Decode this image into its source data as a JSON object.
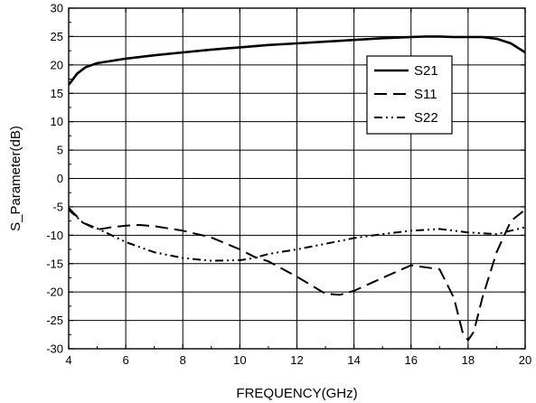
{
  "chart_data": {
    "type": "line",
    "title": "",
    "xlabel": "FREQUENCY(GHz)",
    "ylabel": "S_Parameter(dB)",
    "xlim": [
      4,
      20
    ],
    "ylim": [
      -30,
      30
    ],
    "xticks": [
      4,
      6,
      8,
      10,
      12,
      14,
      16,
      18,
      20
    ],
    "yticks": [
      -30,
      -25,
      -20,
      -15,
      -10,
      -5,
      0,
      5,
      10,
      15,
      20,
      25,
      30
    ],
    "grid": true,
    "legend_position": "right",
    "series": [
      {
        "name": "S21",
        "style": "solid",
        "color": "#000000",
        "x": [
          4,
          4.3,
          4.6,
          5,
          5.5,
          6,
          7,
          8,
          9,
          10,
          11,
          12,
          13,
          14,
          15,
          16,
          16.5,
          17,
          17.5,
          18,
          18.5,
          19,
          19.5,
          20
        ],
        "y": [
          16.5,
          18.5,
          19.6,
          20.3,
          20.7,
          21.1,
          21.7,
          22.2,
          22.7,
          23.1,
          23.5,
          23.8,
          24.1,
          24.4,
          24.7,
          24.9,
          25.0,
          25.0,
          24.9,
          24.9,
          24.9,
          24.6,
          23.8,
          22.2
        ]
      },
      {
        "name": "S11",
        "style": "dash",
        "color": "#000000",
        "x": [
          4,
          4.5,
          5,
          5.5,
          6,
          6.5,
          7,
          8,
          9,
          10,
          10.5,
          11,
          12,
          13,
          13.5,
          14,
          15,
          16,
          17,
          17.5,
          17.8,
          18,
          18.2,
          18.5,
          19,
          19.5,
          20
        ],
        "y": [
          -5.2,
          -7.8,
          -9.0,
          -8.6,
          -8.3,
          -8.2,
          -8.4,
          -9.2,
          -10.4,
          -12.5,
          -13.8,
          -14.6,
          -17.3,
          -20.3,
          -20.5,
          -19.8,
          -17.5,
          -15.3,
          -16.0,
          -21.0,
          -27.0,
          -28.5,
          -27.0,
          -21.0,
          -13.0,
          -7.5,
          -5.5
        ]
      },
      {
        "name": "S22",
        "style": "dash-dot-dot",
        "color": "#000000",
        "x": [
          4,
          4.5,
          5,
          5.5,
          6,
          7,
          8,
          9,
          10,
          10.5,
          11,
          12,
          13,
          14,
          15,
          16,
          17,
          18,
          19,
          20
        ],
        "y": [
          -5.5,
          -7.8,
          -8.8,
          -10.0,
          -11.2,
          -13.0,
          -14.0,
          -14.5,
          -14.4,
          -14.0,
          -13.3,
          -12.5,
          -11.5,
          -10.5,
          -9.8,
          -9.2,
          -8.9,
          -9.5,
          -9.8,
          -8.6
        ]
      }
    ]
  }
}
